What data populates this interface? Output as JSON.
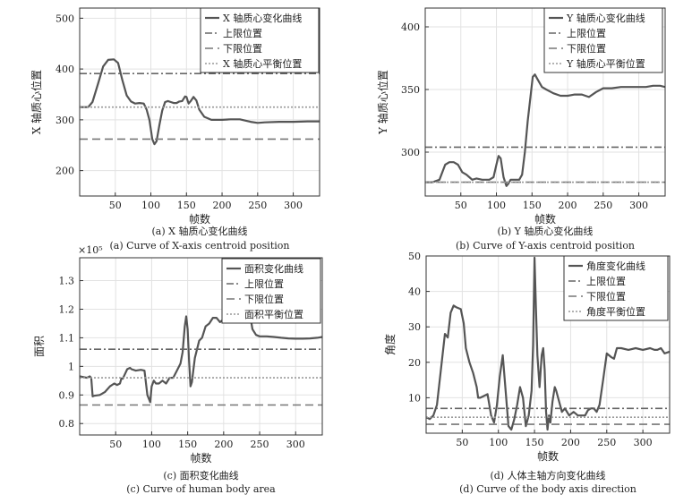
{
  "chart_data": [
    {
      "type": "line",
      "caption_cn": "(a) X 轴质心变化曲线",
      "caption_en": "(a) Curve of X-axis centroid position",
      "xlabel": "帧数",
      "ylabel": "X 轴质心位置",
      "xlim": [
        0,
        337
      ],
      "ylim": [
        150,
        520
      ],
      "xticks": [
        50,
        100,
        150,
        200,
        250,
        300
      ],
      "yticks": [
        200,
        300,
        400,
        500
      ],
      "ytick_labels": [
        "200",
        "300",
        "400",
        "500"
      ],
      "legend_position": "top-right",
      "grid": true,
      "exponent_label": "",
      "series": [
        {
          "name": "X 轴质心变化曲线",
          "style": "solid",
          "x": [
            0,
            12,
            18,
            26,
            33,
            40,
            48,
            54,
            60,
            66,
            72,
            78,
            84,
            90,
            94,
            98,
            102,
            105,
            108,
            112,
            116,
            120,
            124,
            128,
            132,
            136,
            140,
            144,
            148,
            150,
            153,
            156,
            160,
            164,
            168,
            175,
            185,
            200,
            212,
            225,
            240,
            250,
            260,
            280,
            300,
            320,
            337
          ],
          "y": [
            325,
            325,
            335,
            372,
            405,
            418,
            419,
            412,
            378,
            348,
            336,
            332,
            333,
            332,
            320,
            300,
            262,
            252,
            258,
            290,
            318,
            335,
            337,
            335,
            333,
            333,
            336,
            337,
            346,
            345,
            332,
            337,
            345,
            338,
            320,
            306,
            300,
            300,
            301,
            301,
            296,
            294,
            295,
            296,
            296,
            297,
            297
          ]
        },
        {
          "name": "上限位置",
          "style": "dashdot",
          "x": [
            0,
            337
          ],
          "y": [
            391,
            391
          ]
        },
        {
          "name": "下限位置",
          "style": "dashed",
          "x": [
            0,
            337
          ],
          "y": [
            262,
            262
          ]
        },
        {
          "name": "X 轴质心平衡位置",
          "style": "dotted",
          "x": [
            0,
            337
          ],
          "y": [
            325,
            325
          ]
        }
      ]
    },
    {
      "type": "line",
      "caption_cn": "(b) Y 轴质心变化曲线",
      "caption_en": "(b) Curve of Y-axis centroid position",
      "xlabel": "帧数",
      "ylabel": "Y 轴质心位置",
      "xlim": [
        0,
        337
      ],
      "ylim": [
        265,
        415
      ],
      "xticks": [
        50,
        100,
        150,
        200,
        250,
        300
      ],
      "yticks": [
        300,
        350,
        400
      ],
      "ytick_labels": [
        "300",
        "350",
        "400"
      ],
      "legend_position": "top-right",
      "grid": true,
      "exponent_label": "",
      "series": [
        {
          "name": "Y 轴质心变化曲线",
          "style": "solid",
          "x": [
            0,
            10,
            20,
            28,
            34,
            40,
            46,
            52,
            58,
            62,
            66,
            72,
            80,
            90,
            96,
            100,
            103,
            106,
            110,
            114,
            117,
            120,
            126,
            132,
            136,
            140,
            144,
            148,
            151,
            154,
            158,
            164,
            170,
            180,
            190,
            200,
            210,
            220,
            230,
            240,
            250,
            262,
            275,
            290,
            300,
            310,
            320,
            330,
            337
          ],
          "y": [
            276,
            276,
            278,
            290,
            292,
            292,
            290,
            284,
            282,
            280,
            278,
            279,
            278,
            278,
            280,
            290,
            297,
            295,
            280,
            273,
            275,
            278,
            278,
            278,
            282,
            300,
            325,
            345,
            360,
            362,
            358,
            352,
            350,
            347,
            345,
            345,
            346,
            346,
            344,
            348,
            351,
            351,
            352,
            352,
            352,
            352,
            353,
            353,
            352
          ]
        },
        {
          "name": "上限位置",
          "style": "dashdot",
          "x": [
            0,
            337
          ],
          "y": [
            304,
            304
          ]
        },
        {
          "name": "下限位置",
          "style": "dashed",
          "x": [
            0,
            337
          ],
          "y": [
            276,
            276
          ]
        },
        {
          "name": "Y 轴质心平衡位置",
          "style": "dotted",
          "x": [
            0,
            337
          ],
          "y": [
            276,
            276
          ]
        }
      ]
    },
    {
      "type": "line",
      "caption_cn": "(c) 面积变化曲线",
      "caption_en": "(c) Curve of human body area",
      "xlabel": "帧数",
      "ylabel": "面积",
      "xlim": [
        0,
        337
      ],
      "ylim": [
        0.76,
        1.38
      ],
      "xticks": [
        50,
        100,
        150,
        200,
        250,
        300
      ],
      "yticks": [
        0.8,
        0.9,
        1.0,
        1.1,
        1.2,
        1.3
      ],
      "ytick_labels": [
        "0.8",
        "0.9",
        "1",
        "1.1",
        "1.2",
        "1.3"
      ],
      "legend_position": "top-right",
      "grid": true,
      "exponent_label": "×10⁵",
      "series": [
        {
          "name": "面积变化曲线",
          "style": "solid",
          "x": [
            0,
            10,
            14,
            16,
            18,
            20,
            28,
            35,
            42,
            48,
            52,
            56,
            58,
            60,
            66,
            70,
            72,
            78,
            85,
            90,
            94,
            98,
            100,
            103,
            106,
            110,
            115,
            120,
            125,
            130,
            135,
            140,
            143,
            146,
            148,
            150,
            152,
            154,
            156,
            158,
            160,
            163,
            166,
            170,
            175,
            180,
            185,
            190,
            195,
            200,
            205,
            210,
            215,
            220,
            225,
            228,
            232,
            236,
            240,
            245,
            250,
            260,
            270,
            280,
            290,
            300,
            310,
            320,
            330,
            337
          ],
          "y": [
            0.965,
            0.96,
            0.965,
            0.96,
            0.895,
            0.897,
            0.9,
            0.91,
            0.93,
            0.94,
            0.935,
            0.94,
            0.958,
            0.957,
            0.99,
            0.995,
            0.99,
            0.985,
            0.988,
            0.985,
            0.9,
            0.875,
            0.93,
            0.95,
            0.94,
            0.94,
            0.95,
            0.94,
            0.96,
            0.96,
            0.985,
            1.01,
            1.05,
            1.14,
            1.175,
            1.13,
            1.02,
            0.93,
            0.945,
            0.99,
            1.03,
            1.06,
            1.09,
            1.1,
            1.14,
            1.15,
            1.17,
            1.17,
            1.155,
            1.165,
            1.18,
            1.175,
            1.165,
            1.165,
            1.165,
            1.17,
            1.195,
            1.19,
            1.13,
            1.11,
            1.105,
            1.105,
            1.103,
            1.1,
            1.098,
            1.097,
            1.097,
            1.098,
            1.1,
            1.103
          ]
        },
        {
          "name": "上限位置",
          "style": "dashdot",
          "x": [
            0,
            337
          ],
          "y": [
            1.06,
            1.06
          ]
        },
        {
          "name": "下限位置",
          "style": "dashed",
          "x": [
            0,
            337
          ],
          "y": [
            0.865,
            0.865
          ]
        },
        {
          "name": "面积平衡位置",
          "style": "dotted",
          "x": [
            0,
            337
          ],
          "y": [
            0.96,
            0.96
          ]
        }
      ]
    },
    {
      "type": "line",
      "caption_cn": "(d) 人体主轴方向变化曲线",
      "caption_en": "(d) Curve of the body axis direction",
      "xlabel": "帧数",
      "ylabel": "角度",
      "xlim": [
        0,
        337
      ],
      "ylim": [
        0,
        50
      ],
      "xticks": [
        50,
        100,
        150,
        200,
        250,
        300
      ],
      "yticks": [
        10,
        20,
        30,
        40,
        50
      ],
      "ytick_labels": [
        "10",
        "20",
        "30",
        "40",
        "50"
      ],
      "legend_position": "top-right",
      "grid": true,
      "exponent_label": "",
      "series": [
        {
          "name": "角度变化曲线",
          "style": "solid",
          "x": [
            0,
            5,
            10,
            15,
            20,
            26,
            30,
            34,
            38,
            42,
            48,
            52,
            55,
            60,
            65,
            70,
            72,
            75,
            80,
            85,
            90,
            94,
            98,
            102,
            106,
            110,
            114,
            118,
            122,
            126,
            130,
            134,
            138,
            142,
            146,
            148,
            150,
            152,
            154,
            157,
            160,
            162,
            164,
            166,
            168,
            170,
            172,
            175,
            178,
            180,
            184,
            188,
            192,
            198,
            204,
            210,
            216,
            220,
            224,
            228,
            232,
            236,
            240,
            245,
            250,
            256,
            260,
            264,
            270,
            280,
            290,
            300,
            310,
            316,
            320,
            325,
            330,
            337
          ],
          "y": [
            4.5,
            4,
            5,
            8,
            17,
            28,
            27,
            34,
            36,
            35.5,
            35,
            31,
            24,
            20,
            17,
            13,
            10,
            10,
            10.5,
            11,
            5,
            3,
            8,
            16,
            22,
            12,
            2,
            1,
            4,
            8,
            13,
            10,
            2,
            5,
            12,
            25,
            49.5,
            35,
            22,
            13,
            22,
            24,
            18,
            6,
            1,
            5,
            3,
            9,
            13,
            12,
            9,
            6,
            7,
            5,
            6,
            5,
            5,
            5,
            6.5,
            7,
            7,
            6,
            8,
            15,
            22.5,
            21.5,
            21,
            24,
            24,
            23.5,
            24,
            23.5,
            24,
            23.5,
            23.5,
            24,
            22.5,
            23
          ]
        },
        {
          "name": "上限位置",
          "style": "dashdot",
          "x": [
            0,
            337
          ],
          "y": [
            7,
            7
          ]
        },
        {
          "name": "下限位置",
          "style": "dashed",
          "x": [
            0,
            337
          ],
          "y": [
            2.5,
            2.5
          ]
        },
        {
          "name": "角度平衡位置",
          "style": "dotted",
          "x": [
            0,
            337
          ],
          "y": [
            4.5,
            4.5
          ]
        }
      ]
    }
  ]
}
